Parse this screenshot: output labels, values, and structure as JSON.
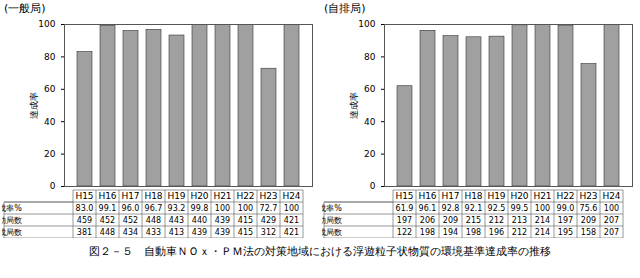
{
  "chart_data": [
    {
      "type": "bar",
      "title": "(一般局)",
      "y_label": "達成率",
      "categories": [
        "H15",
        "H16",
        "H17",
        "H18",
        "H19",
        "H20",
        "H21",
        "H22",
        "H23",
        "H24"
      ],
      "values": [
        83.0,
        99.1,
        96.0,
        96.7,
        93.2,
        99.8,
        100,
        100,
        72.7,
        100
      ],
      "color": "#a0a0a0",
      "ylim": [
        0,
        100
      ],
      "yticks": [
        0,
        20,
        40,
        60,
        80,
        100
      ],
      "grid": false,
      "table": [
        {
          "label": "達成率%",
          "values": [
            "83.0",
            "99.1",
            "96.0",
            "96.7",
            "93.2",
            "99.8",
            "100",
            "100",
            "72.7",
            "100"
          ]
        },
        {
          "label": "有効局数",
          "values": [
            459,
            452,
            452,
            448,
            443,
            440,
            439,
            415,
            429,
            421
          ]
        },
        {
          "label": "達成局数",
          "values": [
            381,
            448,
            434,
            433,
            413,
            439,
            439,
            415,
            312,
            421
          ]
        }
      ]
    },
    {
      "type": "bar",
      "title": "(自排局)",
      "y_label": "達成率",
      "categories": [
        "H15",
        "H16",
        "H17",
        "H18",
        "H19",
        "H20",
        "H21",
        "H22",
        "H23",
        "H24"
      ],
      "values": [
        61.9,
        96.1,
        92.8,
        92.1,
        92.5,
        99.5,
        100,
        99.0,
        75.6,
        100
      ],
      "color": "#a0a0a0",
      "ylim": [
        0,
        100
      ],
      "yticks": [
        0,
        20,
        40,
        60,
        80,
        100
      ],
      "grid": false,
      "table": [
        {
          "label": "達成率%",
          "values": [
            "61.9",
            "96.1",
            "92.8",
            "92.1",
            "92.5",
            "99.5",
            "100",
            "99.0",
            "75.6",
            "100"
          ]
        },
        {
          "label": "有効局数",
          "values": [
            197,
            206,
            209,
            215,
            212,
            213,
            214,
            197,
            209,
            207
          ]
        },
        {
          "label": "達成局数",
          "values": [
            122,
            198,
            194,
            198,
            196,
            212,
            214,
            195,
            158,
            207
          ]
        }
      ]
    }
  ],
  "caption": "図２－５　自動車ＮＯｘ・ＰＭ法の対策地域における浮遊粒子状物質の環境基準達成率の推移"
}
